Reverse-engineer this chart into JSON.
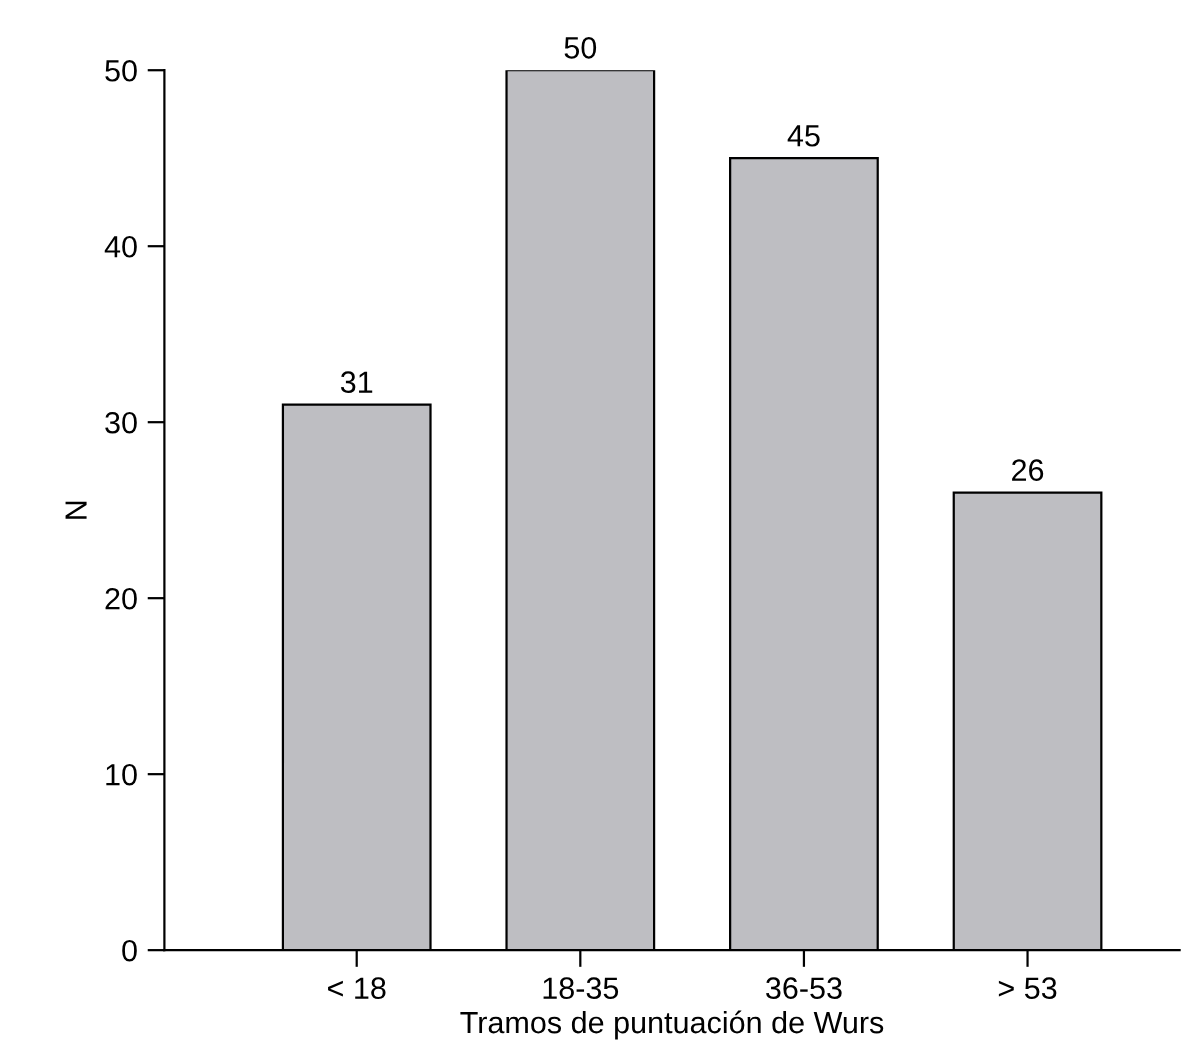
{
  "chart_data": {
    "type": "bar",
    "xlabel": "Tramos de puntuación de Wurs",
    "ylabel": "N",
    "categories": [
      "< 18",
      "18-35",
      "36-53",
      "> 53"
    ],
    "values": [
      31,
      50,
      45,
      26
    ],
    "color": "#bebec2",
    "ylim": [
      0,
      50
    ],
    "yticks": [
      0,
      10,
      20,
      30,
      40,
      50
    ],
    "data_labels": true,
    "grid": false
  }
}
